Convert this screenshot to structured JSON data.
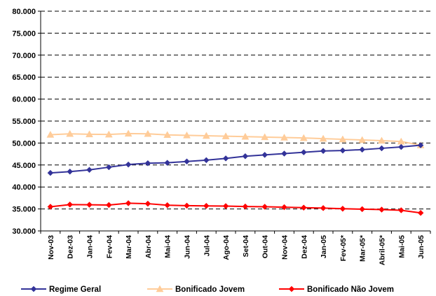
{
  "chart_data": {
    "type": "line",
    "title": "",
    "xlabel": "",
    "ylabel": "",
    "categories": [
      "Nov-03",
      "Dez-03",
      "Jan-04",
      "Fev-04",
      "Mar-04",
      "Abr-04",
      "Mai-04",
      "Jun-04",
      "Jul-04",
      "Ago-04",
      "Set-04",
      "Out-04",
      "Nov-04",
      "Dez-04",
      "Jan-05",
      "Fev-05*",
      "Mar-05*",
      "Abril-05*",
      "Mai-05",
      "Jun-05"
    ],
    "ylim": [
      30000,
      80000
    ],
    "yticks": [
      30000,
      35000,
      40000,
      45000,
      50000,
      55000,
      60000,
      65000,
      70000,
      75000,
      80000
    ],
    "ytick_labels": [
      "30.000",
      "35.000",
      "40.000",
      "45.000",
      "50.000",
      "55.000",
      "60.000",
      "65.000",
      "70.000",
      "75.000",
      "80.000"
    ],
    "grid": "horizontal dashed",
    "legend_position": "bottom",
    "series": [
      {
        "name": "Regime Geral",
        "color": "#333399",
        "marker": "diamond",
        "values": [
          43200,
          43500,
          43900,
          44500,
          45100,
          45400,
          45500,
          45800,
          46100,
          46500,
          47000,
          47300,
          47600,
          47900,
          48200,
          48300,
          48500,
          48800,
          49100,
          49500
        ]
      },
      {
        "name": "Bonificado Jovem",
        "color": "#FFCC99",
        "marker": "triangle",
        "values": [
          51900,
          52100,
          52000,
          51950,
          52150,
          52100,
          51850,
          51750,
          51650,
          51550,
          51450,
          51350,
          51250,
          51150,
          51000,
          50850,
          50700,
          50550,
          50350,
          49500
        ]
      },
      {
        "name": "Bonificado Não Jovem",
        "color": "#FF0000",
        "marker": "diamond",
        "values": [
          35500,
          36000,
          35950,
          35900,
          36300,
          36200,
          35850,
          35750,
          35700,
          35650,
          35550,
          35500,
          35400,
          35300,
          35200,
          35050,
          34950,
          34850,
          34700,
          34100
        ]
      }
    ]
  }
}
